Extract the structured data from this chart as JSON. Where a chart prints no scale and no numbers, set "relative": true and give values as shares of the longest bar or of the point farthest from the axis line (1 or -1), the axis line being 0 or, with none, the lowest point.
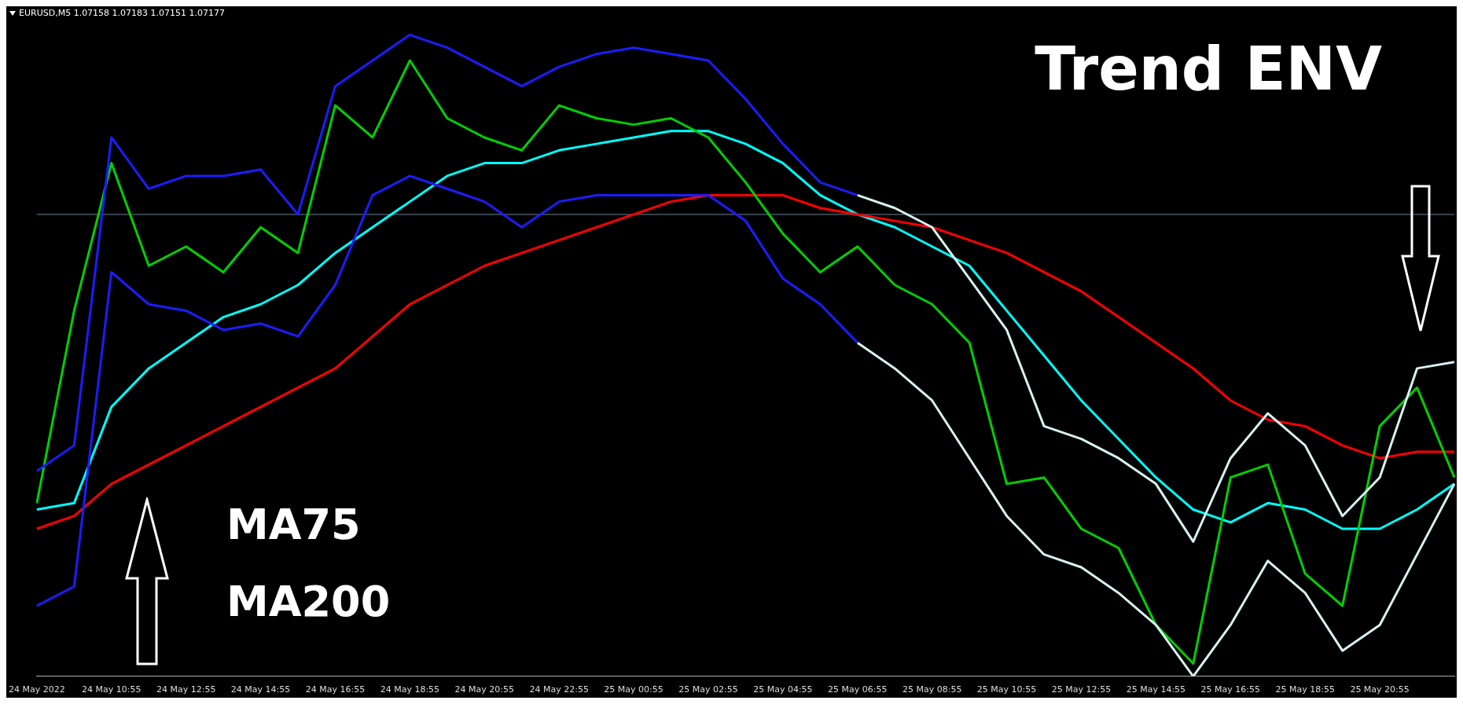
{
  "chart_data": {
    "type": "line",
    "title": "Trend ENV",
    "subtitle": "EURUSD,M5 1.07158 1.07183 1.07151 1.07177",
    "annotations": [
      "MA75",
      "MA200"
    ],
    "relative": true,
    "legend": false,
    "grid": false,
    "marker": "none",
    "line_style": "solid",
    "categories": [
      "24 May 2022",
      null,
      "24 May 10:55",
      null,
      "24 May 12:55",
      null,
      "24 May 14:55",
      null,
      "24 May 16:55",
      null,
      "24 May 18:55",
      null,
      "24 May 20:55",
      null,
      "24 May 22:55",
      null,
      "25 May 00:55",
      null,
      "25 May 02:55",
      null,
      "25 May 04:55",
      null,
      "25 May 06:55",
      null,
      "25 May 08:55",
      null,
      "25 May 10:55",
      null,
      "25 May 12:55",
      null,
      "25 May 14:55",
      null,
      "25 May 16:55",
      null,
      "25 May 18:55",
      null,
      "25 May 20:55",
      null,
      null
    ],
    "ref_lines": [
      {
        "axis": "y",
        "value": 0.72,
        "color": "#6f8294"
      }
    ],
    "series": [
      {
        "color": "#1c1cff",
        "values": [
          0.32,
          0.36,
          0.84,
          0.76,
          0.78,
          0.78,
          0.79,
          0.72,
          0.92,
          0.96,
          1.0,
          0.98,
          0.95,
          0.92,
          0.95,
          0.97,
          0.98,
          0.97,
          0.96,
          0.9,
          0.83,
          0.77,
          0.75,
          null,
          null,
          null,
          null,
          null,
          null,
          null,
          null,
          null,
          null,
          null,
          null,
          null,
          null,
          null,
          null
        ]
      },
      {
        "color": "#1c1cff",
        "values": [
          0.11,
          0.14,
          0.63,
          0.58,
          0.57,
          0.54,
          0.55,
          0.53,
          0.61,
          0.75,
          0.78,
          0.76,
          0.74,
          0.7,
          0.74,
          0.75,
          0.75,
          0.75,
          0.75,
          0.71,
          0.62,
          0.58,
          0.52,
          null,
          null,
          null,
          null,
          null,
          null,
          null,
          null,
          null,
          null,
          null,
          null,
          null,
          null,
          null,
          null
        ]
      },
      {
        "color": "#d8f0f0",
        "values": [
          null,
          null,
          null,
          null,
          null,
          null,
          null,
          null,
          null,
          null,
          null,
          null,
          null,
          null,
          null,
          null,
          null,
          null,
          null,
          null,
          null,
          null,
          0.75,
          0.73,
          0.7,
          0.62,
          0.54,
          0.39,
          0.37,
          0.34,
          0.3,
          0.21,
          0.34,
          0.41,
          0.36,
          0.25,
          0.31,
          0.48,
          0.49
        ]
      },
      {
        "color": "#d8f0f0",
        "values": [
          null,
          null,
          null,
          null,
          null,
          null,
          null,
          null,
          null,
          null,
          null,
          null,
          null,
          null,
          null,
          null,
          null,
          null,
          null,
          null,
          null,
          null,
          0.52,
          0.48,
          0.43,
          0.34,
          0.25,
          0.19,
          0.17,
          0.13,
          0.08,
          0.0,
          0.08,
          0.18,
          0.13,
          0.04,
          0.08,
          0.19,
          0.3
        ]
      },
      {
        "color": "#00d000",
        "values": [
          0.27,
          0.57,
          0.8,
          0.64,
          0.67,
          0.63,
          0.7,
          0.66,
          0.89,
          0.84,
          0.96,
          0.87,
          0.84,
          0.82,
          0.89,
          0.87,
          0.86,
          0.87,
          0.84,
          0.77,
          0.69,
          0.63,
          0.67,
          0.61,
          0.58,
          0.52,
          0.3,
          0.31,
          0.23,
          0.2,
          0.08,
          0.02,
          0.31,
          0.33,
          0.16,
          0.11,
          0.39,
          0.45,
          0.31
        ]
      },
      {
        "color": "#ff0000",
        "values": [
          0.23,
          0.25,
          0.3,
          0.33,
          0.36,
          0.39,
          0.42,
          0.45,
          0.48,
          0.53,
          0.58,
          0.61,
          0.64,
          0.66,
          0.68,
          0.7,
          0.72,
          0.74,
          0.75,
          0.75,
          0.75,
          0.73,
          0.72,
          0.71,
          0.7,
          0.68,
          0.66,
          0.63,
          0.6,
          0.56,
          0.52,
          0.48,
          0.43,
          0.4,
          0.39,
          0.36,
          0.34,
          0.35,
          0.35
        ]
      },
      {
        "color": "#00ffff",
        "values": [
          0.26,
          0.27,
          0.42,
          0.48,
          0.52,
          0.56,
          0.58,
          0.61,
          0.66,
          0.7,
          0.74,
          0.78,
          0.8,
          0.8,
          0.82,
          0.83,
          0.84,
          0.85,
          0.85,
          0.83,
          0.8,
          0.75,
          0.72,
          0.7,
          0.67,
          0.64,
          0.57,
          0.5,
          0.43,
          0.37,
          0.31,
          0.26,
          0.24,
          0.27,
          0.26,
          0.23,
          0.23,
          0.26,
          0.3
        ]
      }
    ]
  }
}
